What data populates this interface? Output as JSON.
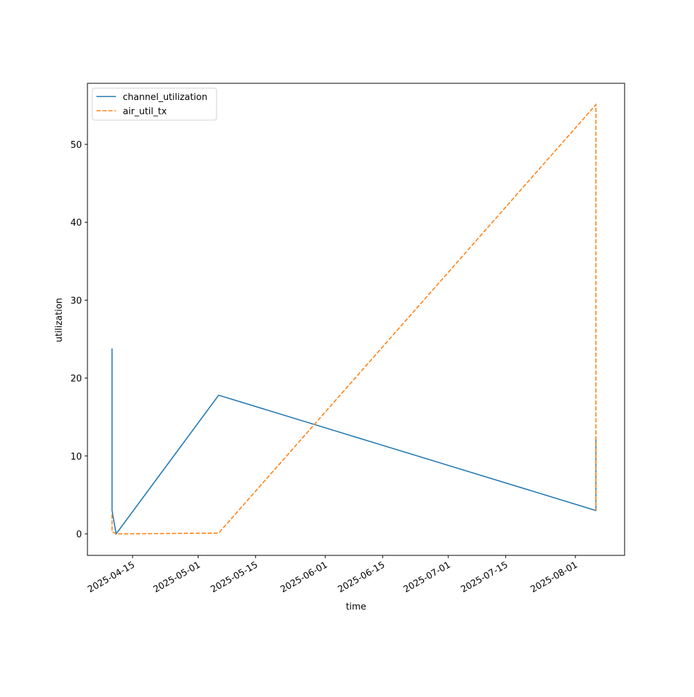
{
  "chart_data": {
    "type": "line",
    "x_label": "time",
    "y_label": "utilization",
    "x": [
      "2025-04-10",
      "2025-04-10",
      "2025-04-11",
      "2025-05-06",
      "2025-08-06",
      "2025-08-06"
    ],
    "series": [
      {
        "name": "channel_utilization",
        "color": "#1f77b4",
        "dash": "solid",
        "values": [
          23.8,
          3.0,
          0.0,
          17.8,
          3.0,
          12.5
        ]
      },
      {
        "name": "air_util_tx",
        "color": "#ff7f0e",
        "dash": "dashed",
        "values": [
          2.5,
          0.3,
          0.0,
          0.1,
          55.1,
          3.0
        ]
      }
    ],
    "xlim": [
      "2025-04-04",
      "2025-08-13"
    ],
    "xticks": [
      "2025-04-15",
      "2025-05-01",
      "2025-05-15",
      "2025-06-01",
      "2025-06-15",
      "2025-07-01",
      "2025-07-15",
      "2025-08-01"
    ],
    "ylim": [
      -2.76,
      57.84
    ],
    "yticks": [
      0,
      10,
      20,
      30,
      40,
      50
    ],
    "grid": false,
    "legend": "upper left"
  }
}
